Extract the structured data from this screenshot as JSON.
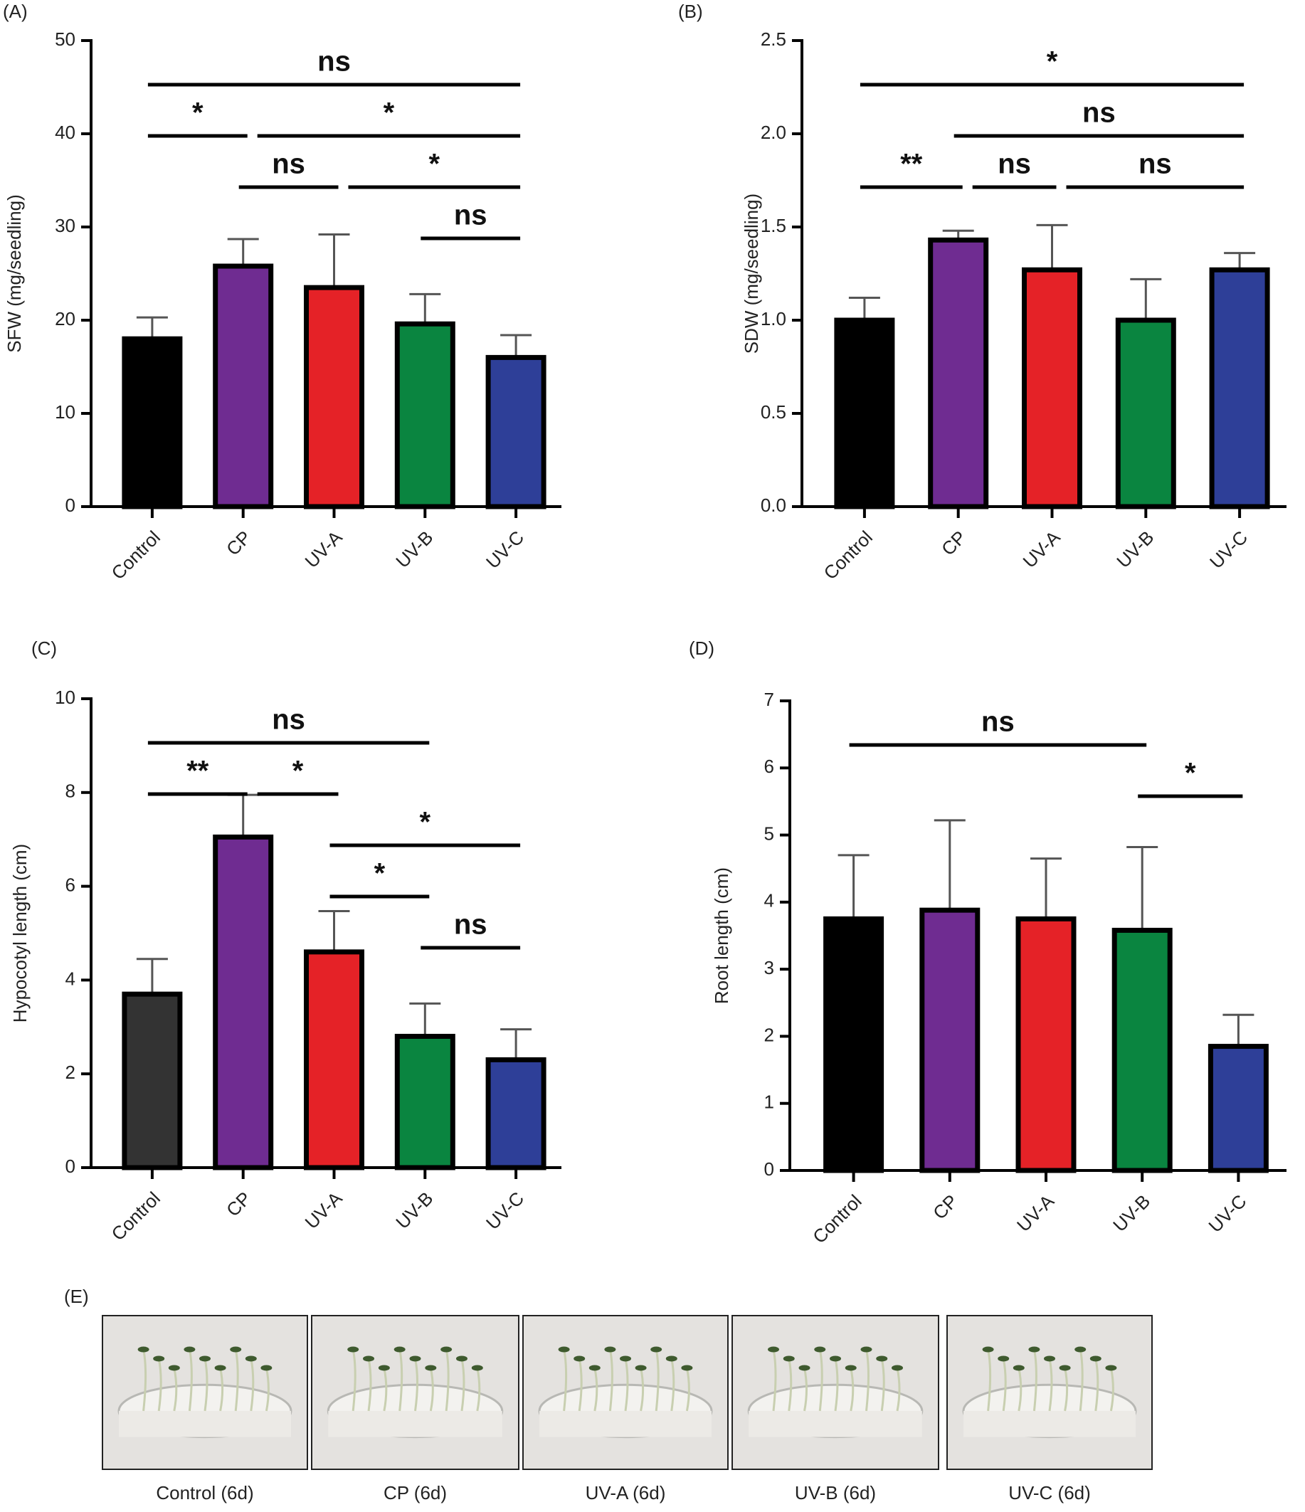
{
  "chart_data": [
    {
      "type": "bar",
      "panel": "(A)",
      "ylabel": "SFW (mg/seedling)",
      "categories": [
        "Control",
        "CP",
        "UV-A",
        "UV-B",
        "UV-C"
      ],
      "values": [
        18,
        25.8,
        23.5,
        19.6,
        16
      ],
      "errors": [
        2.3,
        2.9,
        5.7,
        3.2,
        2.4
      ],
      "colors": [
        "#000000",
        "#6f2c91",
        "#e52227",
        "#0a8540",
        "#2e3f98"
      ],
      "ylim": [
        0,
        50
      ],
      "yticks": [
        0,
        10,
        20,
        30,
        40,
        50
      ],
      "annotations": [
        [
          {
            "text": "ns",
            "from": "Control",
            "to": "UV-C"
          }
        ],
        [
          {
            "text": "*",
            "from": "Control",
            "to": "CP"
          },
          {
            "text": "*",
            "from": "CP",
            "to": "UV-C"
          }
        ],
        [
          {
            "text": "ns",
            "from": "CP",
            "to": "UV-A"
          },
          {
            "text": "*",
            "from": "UV-A",
            "to": "UV-C"
          }
        ],
        [
          {
            "text": "ns",
            "from": "UV-B",
            "to": "UV-C"
          }
        ]
      ]
    },
    {
      "type": "bar",
      "panel": "(B)",
      "ylabel": "SDW (mg/seedling)",
      "categories": [
        "Control",
        "CP",
        "UV-A",
        "UV-B",
        "UV-C"
      ],
      "values": [
        1.0,
        1.43,
        1.27,
        1.0,
        1.27
      ],
      "errors": [
        0.12,
        0.05,
        0.24,
        0.22,
        0.09
      ],
      "colors": [
        "#000000",
        "#6f2c91",
        "#e52227",
        "#0a8540",
        "#2e3f98"
      ],
      "ylim": [
        0,
        2.5
      ],
      "yticks": [
        {
          "value": 0,
          "label": "0.0"
        },
        0.5,
        {
          "value": 1,
          "label": "1.0"
        },
        1.5,
        {
          "value": 2,
          "label": "2.0"
        },
        2.5
      ],
      "annotations": [
        [
          {
            "text": "*",
            "from": "Control",
            "to": "UV-C"
          }
        ],
        [
          {
            "text": "ns",
            "from": "CP",
            "to": "UV-C"
          }
        ],
        [
          {
            "text": "**",
            "from": "Control",
            "to": "CP"
          },
          {
            "text": "ns",
            "from": "CP",
            "to": "UV-A"
          },
          {
            "text": "ns",
            "from": "UV-A",
            "to": "UV-C"
          }
        ]
      ]
    },
    {
      "type": "bar",
      "panel": "(C)",
      "ylabel": "Hypocotyl length (cm)",
      "categories": [
        "Control",
        "CP",
        "UV-A",
        "UV-B",
        "UV-C"
      ],
      "values": [
        3.7,
        7.05,
        4.6,
        2.8,
        2.3
      ],
      "errors": [
        0.75,
        0.9,
        0.87,
        0.7,
        0.65
      ],
      "colors": [
        "#333333",
        "#6f2c91",
        "#e52227",
        "#0a8540",
        "#2e3f98"
      ],
      "ylim": [
        0,
        10
      ],
      "yticks": [
        0,
        2,
        4,
        6,
        8,
        10
      ],
      "annotations": [
        [
          {
            "text": "ns",
            "from": "Control",
            "to": "UV-B"
          }
        ],
        [
          {
            "text": "**",
            "from": "Control",
            "to": "CP"
          },
          {
            "text": "*",
            "from": "CP",
            "to": "UV-A"
          }
        ],
        [
          {
            "text": "*",
            "from": "UV-A",
            "to": "UV-C"
          }
        ],
        [
          {
            "text": "*",
            "from": "UV-A",
            "to": "UV-B"
          }
        ],
        [
          {
            "text": "ns",
            "from": "UV-B",
            "to": "UV-C"
          }
        ]
      ]
    },
    {
      "type": "bar",
      "panel": "(D)",
      "ylabel": "Root length (cm)",
      "categories": [
        "Control",
        "CP",
        "UV-A",
        "UV-B",
        "UV-C"
      ],
      "values": [
        3.75,
        3.88,
        3.75,
        3.58,
        1.85
      ],
      "errors": [
        0.95,
        1.34,
        0.9,
        1.24,
        0.47
      ],
      "colors": [
        "#000000",
        "#6f2c91",
        "#e52227",
        "#0a8540",
        "#2e3f98"
      ],
      "ylim": [
        0,
        7
      ],
      "yticks": [
        0,
        1,
        2,
        3,
        4,
        5,
        6,
        7
      ],
      "annotations": [
        [
          {
            "text": "ns",
            "from": "Control",
            "to": "UV-B"
          }
        ],
        [
          {
            "text": "*",
            "from": "UV-B",
            "to": "UV-C"
          }
        ]
      ]
    }
  ],
  "photos": {
    "panel": "(E)",
    "captions": [
      "Control (6d)",
      "CP (6d)",
      "UV-A (6d)",
      "UV-B (6d)",
      "UV-C (6d)"
    ]
  }
}
